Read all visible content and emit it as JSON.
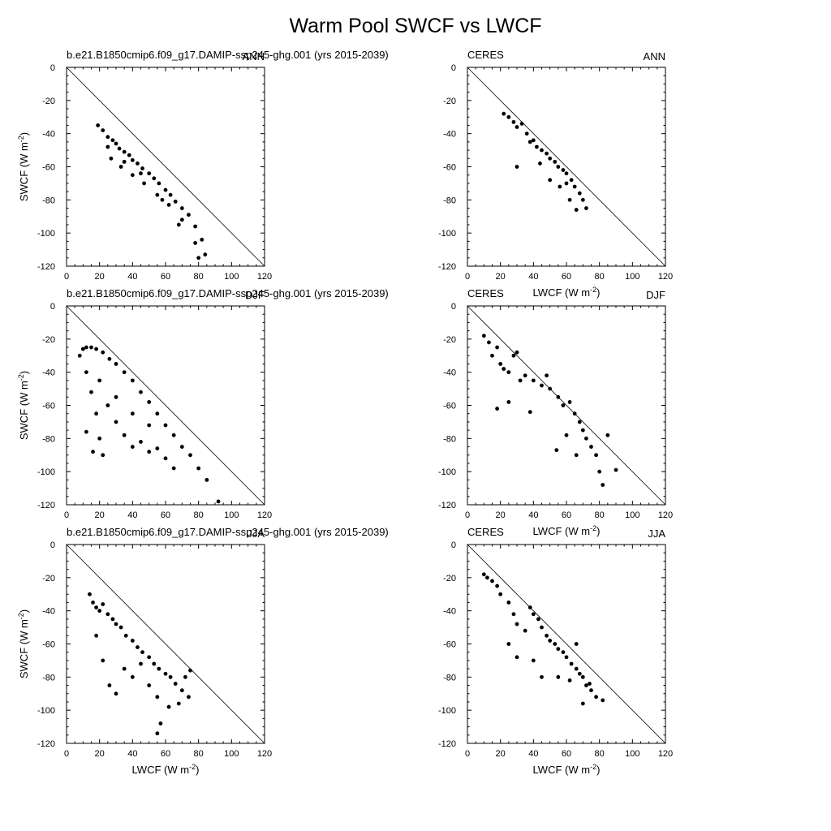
{
  "figure": {
    "title": "Warm Pool SWCF vs LWCF"
  },
  "chart_data": [
    {
      "type": "scatter",
      "panel": "model-ann",
      "left_title": "b.e21.B1850cmip6.f09_g17.DAMIP-ssp245-ghg.001 (yrs 2015-2039)",
      "right_title": "ANN",
      "xlabel": "",
      "ylabel": "SWCF (W m-2)",
      "xlim": [
        0,
        120
      ],
      "ylim": [
        -120,
        0
      ],
      "xticks": [
        0,
        20,
        40,
        60,
        80,
        100,
        120
      ],
      "yticks": [
        0,
        -20,
        -40,
        -60,
        -80,
        -100,
        -120
      ],
      "reference_line": "y = -x",
      "points": [
        [
          19,
          -35
        ],
        [
          22,
          -38
        ],
        [
          25,
          -42
        ],
        [
          28,
          -44
        ],
        [
          30,
          -46
        ],
        [
          32,
          -49
        ],
        [
          35,
          -51
        ],
        [
          38,
          -53
        ],
        [
          40,
          -56
        ],
        [
          43,
          -58
        ],
        [
          46,
          -61
        ],
        [
          50,
          -64
        ],
        [
          53,
          -67
        ],
        [
          56,
          -70
        ],
        [
          60,
          -74
        ],
        [
          63,
          -77
        ],
        [
          66,
          -81
        ],
        [
          70,
          -85
        ],
        [
          74,
          -89
        ],
        [
          78,
          -96
        ],
        [
          82,
          -104
        ],
        [
          84,
          -113
        ],
        [
          27,
          -55
        ],
        [
          33,
          -60
        ],
        [
          40,
          -65
        ],
        [
          47,
          -70
        ],
        [
          55,
          -77
        ],
        [
          62,
          -83
        ],
        [
          70,
          -92
        ],
        [
          78,
          -106
        ],
        [
          25,
          -48
        ],
        [
          35,
          -57
        ],
        [
          45,
          -64
        ],
        [
          58,
          -80
        ],
        [
          68,
          -95
        ],
        [
          80,
          -115
        ]
      ]
    },
    {
      "type": "scatter",
      "panel": "ceres-ann",
      "left_title": "CERES",
      "right_title": "ANN",
      "xlabel": "LWCF (W m-2)",
      "ylabel": "",
      "xlim": [
        0,
        120
      ],
      "ylim": [
        -120,
        0
      ],
      "xticks": [
        0,
        20,
        40,
        60,
        80,
        100,
        120
      ],
      "yticks": [
        0,
        -20,
        -40,
        -60,
        -80,
        -100,
        -120
      ],
      "reference_line": "y = -x",
      "points": [
        [
          22,
          -28
        ],
        [
          25,
          -30
        ],
        [
          28,
          -33
        ],
        [
          30,
          -36
        ],
        [
          33,
          -34
        ],
        [
          36,
          -40
        ],
        [
          38,
          -45
        ],
        [
          40,
          -44
        ],
        [
          42,
          -48
        ],
        [
          45,
          -50
        ],
        [
          48,
          -52
        ],
        [
          50,
          -55
        ],
        [
          53,
          -57
        ],
        [
          55,
          -60
        ],
        [
          58,
          -62
        ],
        [
          60,
          -64
        ],
        [
          63,
          -68
        ],
        [
          65,
          -72
        ],
        [
          68,
          -76
        ],
        [
          70,
          -80
        ],
        [
          72,
          -85
        ],
        [
          30,
          -60
        ],
        [
          44,
          -58
        ],
        [
          50,
          -68
        ],
        [
          56,
          -72
        ],
        [
          62,
          -80
        ],
        [
          66,
          -86
        ],
        [
          60,
          -70
        ]
      ]
    },
    {
      "type": "scatter",
      "panel": "model-djf",
      "left_title": "b.e21.B1850cmip6.f09_g17.DAMIP-ssp245-ghg.001 (yrs 2015-2039)",
      "right_title": "DJF",
      "xlabel": "",
      "ylabel": "SWCF (W m-2)",
      "xlim": [
        0,
        120
      ],
      "ylim": [
        -120,
        0
      ],
      "xticks": [
        0,
        20,
        40,
        60,
        80,
        100,
        120
      ],
      "yticks": [
        0,
        -20,
        -40,
        -60,
        -80,
        -100,
        -120
      ],
      "reference_line": "y = -x",
      "points": [
        [
          8,
          -30
        ],
        [
          10,
          -26
        ],
        [
          12,
          -25
        ],
        [
          15,
          -25
        ],
        [
          18,
          -26
        ],
        [
          22,
          -28
        ],
        [
          26,
          -32
        ],
        [
          30,
          -35
        ],
        [
          35,
          -40
        ],
        [
          40,
          -45
        ],
        [
          45,
          -52
        ],
        [
          50,
          -58
        ],
        [
          55,
          -65
        ],
        [
          60,
          -72
        ],
        [
          65,
          -78
        ],
        [
          70,
          -85
        ],
        [
          75,
          -90
        ],
        [
          80,
          -98
        ],
        [
          85,
          -105
        ],
        [
          92,
          -118
        ],
        [
          12,
          -40
        ],
        [
          15,
          -52
        ],
        [
          18,
          -65
        ],
        [
          20,
          -80
        ],
        [
          22,
          -90
        ],
        [
          25,
          -60
        ],
        [
          30,
          -70
        ],
        [
          35,
          -78
        ],
        [
          40,
          -85
        ],
        [
          45,
          -82
        ],
        [
          50,
          -88
        ],
        [
          55,
          -86
        ],
        [
          60,
          -92
        ],
        [
          65,
          -98
        ],
        [
          20,
          -45
        ],
        [
          30,
          -55
        ],
        [
          40,
          -65
        ],
        [
          50,
          -72
        ],
        [
          12,
          -76
        ],
        [
          16,
          -88
        ]
      ]
    },
    {
      "type": "scatter",
      "panel": "ceres-djf",
      "left_title": "CERES",
      "right_title": "DJF",
      "xlabel": "LWCF (W m-2)",
      "ylabel": "",
      "xlim": [
        0,
        120
      ],
      "ylim": [
        -120,
        0
      ],
      "xticks": [
        0,
        20,
        40,
        60,
        80,
        100,
        120
      ],
      "yticks": [
        0,
        -20,
        -40,
        -60,
        -80,
        -100,
        -120
      ],
      "reference_line": "y = -x",
      "points": [
        [
          10,
          -18
        ],
        [
          13,
          -22
        ],
        [
          15,
          -30
        ],
        [
          18,
          -25
        ],
        [
          20,
          -35
        ],
        [
          22,
          -38
        ],
        [
          25,
          -40
        ],
        [
          28,
          -30
        ],
        [
          30,
          -28
        ],
        [
          32,
          -45
        ],
        [
          35,
          -42
        ],
        [
          40,
          -45
        ],
        [
          45,
          -48
        ],
        [
          48,
          -42
        ],
        [
          50,
          -50
        ],
        [
          55,
          -55
        ],
        [
          58,
          -60
        ],
        [
          62,
          -58
        ],
        [
          65,
          -65
        ],
        [
          68,
          -70
        ],
        [
          70,
          -75
        ],
        [
          72,
          -80
        ],
        [
          75,
          -85
        ],
        [
          78,
          -90
        ],
        [
          80,
          -100
        ],
        [
          82,
          -108
        ],
        [
          85,
          -78
        ],
        [
          90,
          -99
        ],
        [
          18,
          -62
        ],
        [
          25,
          -58
        ],
        [
          38,
          -64
        ],
        [
          54,
          -87
        ],
        [
          60,
          -78
        ],
        [
          66,
          -90
        ]
      ]
    },
    {
      "type": "scatter",
      "panel": "model-jja",
      "left_title": "b.e21.B1850cmip6.f09_g17.DAMIP-ssp245-ghg.001 (yrs 2015-2039)",
      "right_title": "JJA",
      "xlabel": "LWCF (W m-2)",
      "ylabel": "SWCF (W m-2)",
      "xlim": [
        0,
        120
      ],
      "ylim": [
        -120,
        0
      ],
      "xticks": [
        0,
        20,
        40,
        60,
        80,
        100,
        120
      ],
      "yticks": [
        0,
        -20,
        -40,
        -60,
        -80,
        -100,
        -120
      ],
      "reference_line": "y = -x",
      "points": [
        [
          14,
          -30
        ],
        [
          16,
          -35
        ],
        [
          18,
          -38
        ],
        [
          20,
          -40
        ],
        [
          22,
          -36
        ],
        [
          25,
          -42
        ],
        [
          28,
          -45
        ],
        [
          30,
          -48
        ],
        [
          33,
          -50
        ],
        [
          36,
          -55
        ],
        [
          40,
          -58
        ],
        [
          43,
          -62
        ],
        [
          46,
          -65
        ],
        [
          50,
          -68
        ],
        [
          53,
          -72
        ],
        [
          56,
          -75
        ],
        [
          60,
          -78
        ],
        [
          63,
          -80
        ],
        [
          66,
          -84
        ],
        [
          70,
          -88
        ],
        [
          74,
          -92
        ],
        [
          18,
          -55
        ],
        [
          22,
          -70
        ],
        [
          26,
          -85
        ],
        [
          30,
          -90
        ],
        [
          35,
          -75
        ],
        [
          40,
          -80
        ],
        [
          45,
          -72
        ],
        [
          50,
          -85
        ],
        [
          55,
          -92
        ],
        [
          57,
          -108
        ],
        [
          55,
          -114
        ],
        [
          62,
          -98
        ],
        [
          68,
          -96
        ],
        [
          72,
          -80
        ],
        [
          75,
          -76
        ]
      ]
    },
    {
      "type": "scatter",
      "panel": "ceres-jja",
      "left_title": "CERES",
      "right_title": "JJA",
      "xlabel": "LWCF (W m-2)",
      "ylabel": "",
      "xlim": [
        0,
        120
      ],
      "ylim": [
        -120,
        0
      ],
      "xticks": [
        0,
        20,
        40,
        60,
        80,
        100,
        120
      ],
      "yticks": [
        0,
        -20,
        -40,
        -60,
        -80,
        -100,
        -120
      ],
      "reference_line": "y = -x",
      "points": [
        [
          10,
          -18
        ],
        [
          12,
          -20
        ],
        [
          15,
          -22
        ],
        [
          18,
          -25
        ],
        [
          20,
          -30
        ],
        [
          25,
          -35
        ],
        [
          28,
          -42
        ],
        [
          30,
          -48
        ],
        [
          35,
          -52
        ],
        [
          38,
          -38
        ],
        [
          40,
          -42
        ],
        [
          43,
          -45
        ],
        [
          45,
          -50
        ],
        [
          48,
          -55
        ],
        [
          50,
          -58
        ],
        [
          53,
          -60
        ],
        [
          55,
          -63
        ],
        [
          58,
          -65
        ],
        [
          60,
          -68
        ],
        [
          63,
          -72
        ],
        [
          66,
          -75
        ],
        [
          68,
          -78
        ],
        [
          70,
          -80
        ],
        [
          72,
          -85
        ],
        [
          75,
          -88
        ],
        [
          78,
          -92
        ],
        [
          82,
          -94
        ],
        [
          25,
          -60
        ],
        [
          30,
          -68
        ],
        [
          40,
          -70
        ],
        [
          45,
          -80
        ],
        [
          55,
          -80
        ],
        [
          62,
          -82
        ],
        [
          70,
          -96
        ],
        [
          66,
          -60
        ],
        [
          74,
          -84
        ]
      ]
    }
  ]
}
